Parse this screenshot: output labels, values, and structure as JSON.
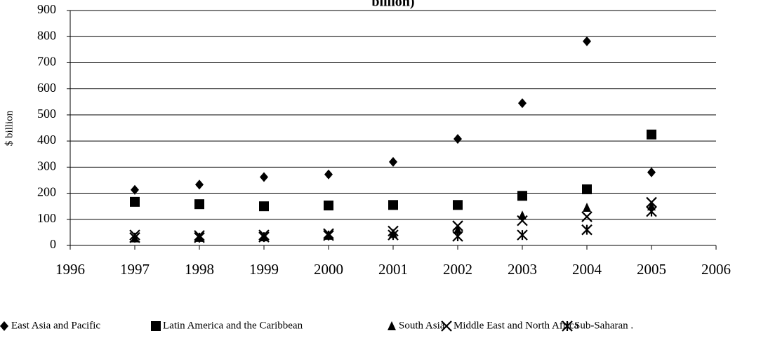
{
  "chart_data": {
    "type": "scatter",
    "title": "billion)",
    "ylabel": "$ billion",
    "x": [
      1997,
      1998,
      1999,
      2000,
      2001,
      2002,
      2003,
      2004,
      2005
    ],
    "series": [
      {
        "name": "East Asia and Pacific",
        "color": "#000000",
        "marker": "diamond",
        "values": [
          213,
          233,
          262,
          272,
          320,
          408,
          545,
          782,
          280
        ]
      },
      {
        "name": "Latin America and the Caribbean",
        "color": "#000000",
        "marker": "square",
        "values": [
          167,
          158,
          150,
          153,
          155,
          155,
          190,
          215,
          425
        ]
      },
      {
        "name": "South Asia",
        "color": "#000000",
        "marker": "triangle",
        "values": [
          28,
          30,
          32,
          38,
          45,
          60,
          115,
          145,
          150
        ]
      },
      {
        "name": "Middle East and North Africa",
        "color": "#000000",
        "marker": "x",
        "values": [
          40,
          38,
          40,
          45,
          55,
          75,
          95,
          110,
          165
        ]
      },
      {
        "name": "Sub-Saharan .",
        "color": "#000000",
        "marker": "star",
        "values": [
          30,
          30,
          32,
          38,
          40,
          35,
          40,
          60,
          130
        ]
      }
    ],
    "xlim": [
      1996,
      2006
    ],
    "xticks": [
      1996,
      1997,
      1998,
      1999,
      2000,
      2001,
      2002,
      2003,
      2004,
      2005,
      2006
    ],
    "ylim": [
      0,
      900
    ],
    "yticks": [
      0,
      100,
      200,
      300,
      400,
      500,
      600,
      700,
      800,
      900
    ],
    "grid": true,
    "legend": "bottom"
  }
}
